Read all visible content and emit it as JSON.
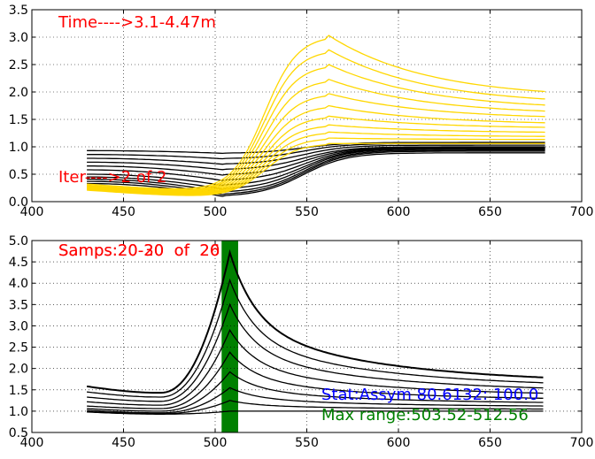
{
  "chart_data": [
    {
      "type": "line",
      "xlim": [
        400,
        700
      ],
      "ylim": [
        0.0,
        3.5
      ],
      "xticks": [
        "400",
        "450",
        "500",
        "550",
        "600",
        "650",
        "700"
      ],
      "yticks": [
        "0.0",
        "0.5",
        "1.0",
        "1.5",
        "2.0",
        "2.5",
        "3.0",
        "3.5"
      ],
      "grid": true,
      "annotations": [
        {
          "text": "Time---->3.1-4.47m",
          "color": "#ff0000"
        },
        {
          "text": "Iter---->2 of 2",
          "color": "#ff0000"
        }
      ],
      "series_groups": [
        {
          "color": "#ffd700",
          "x_range": [
            430,
            680
          ],
          "peak_x": 562,
          "start_levels": [
            0.32,
            0.3,
            0.29,
            0.28,
            0.27,
            0.26,
            0.25,
            0.24,
            0.23,
            0.22,
            0.21
          ],
          "peak_levels": [
            3.03,
            2.77,
            2.5,
            2.23,
            1.97,
            1.75,
            1.56,
            1.4,
            1.27,
            1.16,
            1.06
          ],
          "end_levels": [
            1.88,
            1.76,
            1.67,
            1.58,
            1.5,
            1.4,
            1.33,
            1.25,
            1.18,
            1.13,
            1.08
          ]
        },
        {
          "color": "#000000",
          "x_range": [
            430,
            680
          ],
          "start_levels": [
            0.93,
            0.86,
            0.79,
            0.72,
            0.65,
            0.58,
            0.5,
            0.45,
            0.41,
            0.37,
            0.33
          ],
          "min_levels": [
            0.88,
            0.78,
            0.68,
            0.58,
            0.48,
            0.38,
            0.29,
            0.22,
            0.16,
            0.12,
            0.09
          ],
          "end_levels": [
            1.08,
            1.06,
            1.03,
            1.0,
            0.99,
            0.98,
            0.97,
            0.96,
            0.94,
            0.92,
            0.89
          ]
        }
      ]
    },
    {
      "type": "line",
      "xlim": [
        400,
        700
      ],
      "ylim": [
        0.5,
        5.0
      ],
      "xticks": [
        "400",
        "450",
        "500",
        "550",
        "600",
        "650",
        "700"
      ],
      "yticks": [
        "0.5",
        "1.0",
        "1.5",
        "2.0",
        "2.5",
        "3.0",
        "3.5",
        "4.0",
        "4.5",
        "5.0"
      ],
      "grid": true,
      "highlight_band": {
        "x_from": 503.52,
        "x_to": 512.56,
        "color": "#008000"
      },
      "annotations": [
        {
          "text": "Samps:20-20  of  20",
          "color": "#ff0000"
        },
        {
          "text": "Samps:20-30  of  26",
          "color": "#ff0000"
        },
        {
          "text": "Stat:Assym 80.6132: 100.0",
          "color": "#0000ff"
        },
        {
          "text": "Max range:503.52-512.56",
          "color": "#008000"
        }
      ],
      "series_group": {
        "color": "#000000",
        "x_range": [
          430,
          680
        ],
        "peak_x": 508,
        "start_levels": [
          1.58,
          1.45,
          1.33,
          1.22,
          1.12,
          1.06,
          1.02,
          0.99,
          0.98
        ],
        "dip_levels": [
          1.43,
          1.33,
          1.23,
          1.14,
          1.06,
          1.0,
          0.96,
          0.94,
          0.93
        ],
        "peak_levels": [
          4.72,
          4.07,
          3.5,
          2.9,
          2.38,
          1.92,
          1.55,
          1.25,
          1.0
        ],
        "end_levels": [
          1.65,
          1.55,
          1.45,
          1.35,
          1.25,
          1.17,
          1.1,
          1.04,
          1.0
        ]
      }
    }
  ]
}
